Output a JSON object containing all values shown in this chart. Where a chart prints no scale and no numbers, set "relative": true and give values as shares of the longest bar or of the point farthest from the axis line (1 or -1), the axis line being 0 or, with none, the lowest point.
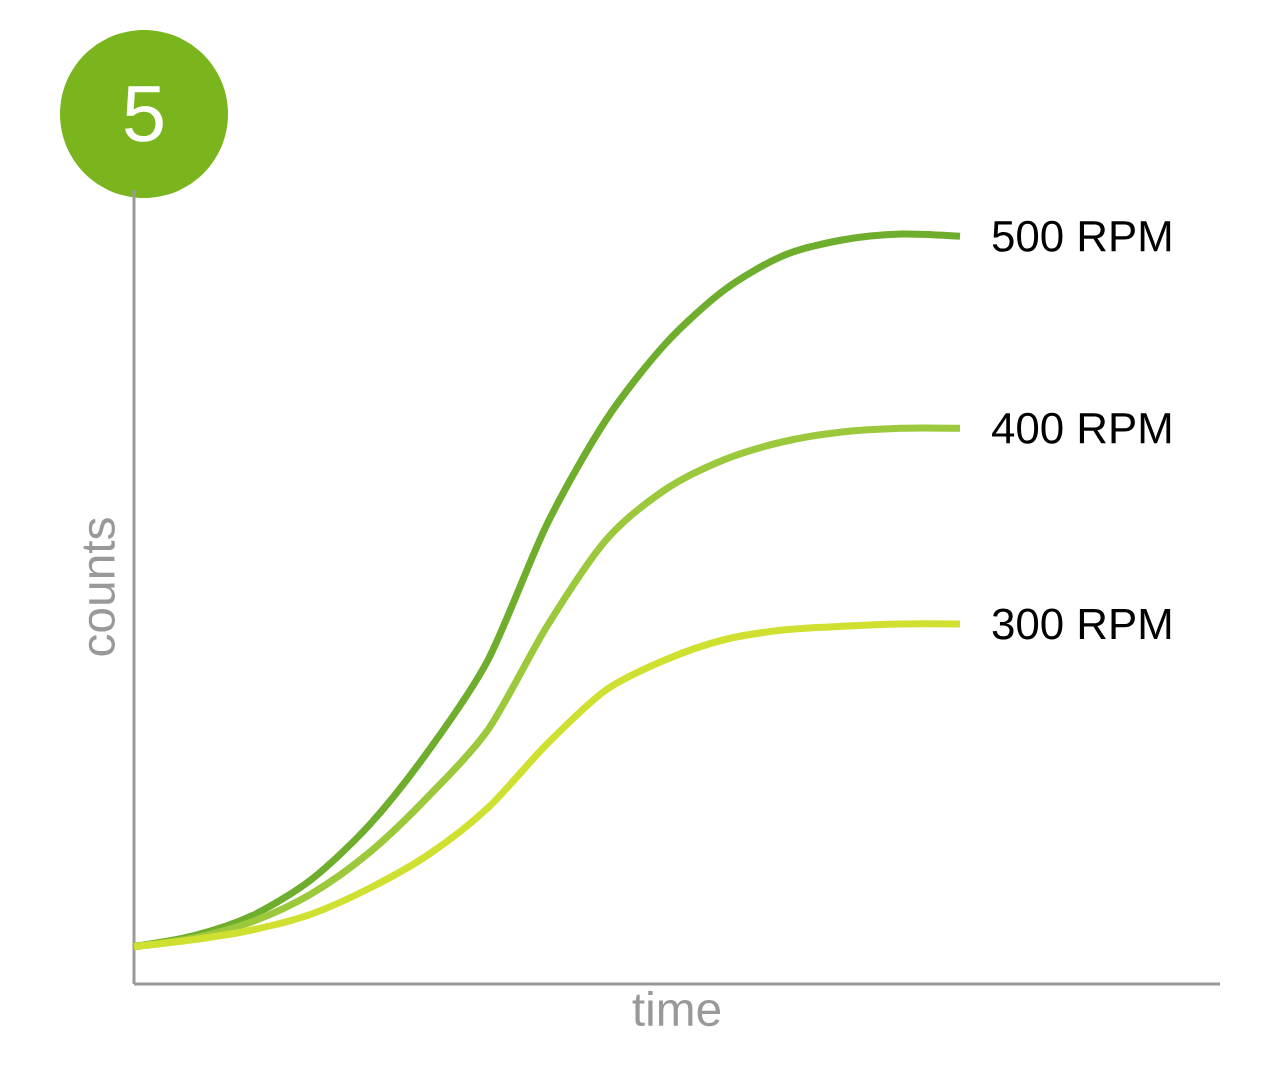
{
  "chart_data": {
    "type": "line",
    "relative": true,
    "xlabel": "time",
    "ylabel": "counts",
    "annotations": [
      "5"
    ],
    "legend": false,
    "categories": [
      null,
      null,
      null,
      null,
      null,
      null,
      null,
      null,
      null,
      null,
      null,
      null,
      null,
      null,
      null
    ],
    "series": [
      {
        "name": "500 RPM",
        "color": "#6fae2c",
        "values": [
          0.05,
          0.064,
          0.091,
          0.139,
          0.213,
          0.312,
          0.432,
          0.613,
          0.752,
          0.853,
          0.925,
          0.971,
          0.992,
          1.0,
          0.997
        ]
      },
      {
        "name": "400 RPM",
        "color": "#9cc83c",
        "values": [
          0.05,
          0.061,
          0.083,
          0.12,
          0.176,
          0.251,
          0.339,
          0.477,
          0.592,
          0.659,
          0.699,
          0.723,
          0.736,
          0.741,
          0.741
        ]
      },
      {
        "name": "300 RPM",
        "color": "#cfe030",
        "values": [
          0.05,
          0.059,
          0.072,
          0.093,
          0.128,
          0.173,
          0.235,
          0.32,
          0.392,
          0.432,
          0.459,
          0.472,
          0.477,
          0.48,
          0.48
        ]
      }
    ]
  }
}
